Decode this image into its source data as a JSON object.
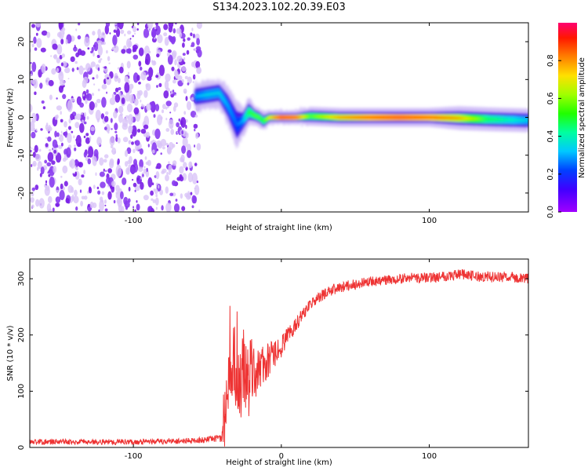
{
  "title": "S134.2023.102.20.39.E03",
  "colors": {
    "snr_line": "#ee3333",
    "spec_background_dot": "#7a1fe6",
    "spec_background_dot_light": "#d9c4f7"
  },
  "colorbar": {
    "label": "Normalized spectral amplitude",
    "range": [
      0.0,
      1.0
    ],
    "ticks": [
      0.0,
      0.2,
      0.4,
      0.6,
      0.8
    ],
    "tick_labels": [
      "0.0",
      "0.2",
      "0.4",
      "0.6",
      "0.8"
    ],
    "colormap": "gist_rainbow_r (magenta-purple-blue-cyan-green-yellow-orange-red)"
  },
  "chart_data": [
    {
      "type": "heatmap",
      "name": "spectrogram",
      "xlabel": "Height of straight line (km)",
      "ylabel": "Frequency (Hz)",
      "xlim": [
        -170,
        167
      ],
      "ylim": [
        -25,
        25
      ],
      "xticks": [
        -100,
        0,
        100
      ],
      "xtick_labels": [
        "-100",
        "",
        "100"
      ],
      "yticks": [
        -20,
        -10,
        0,
        10,
        20
      ],
      "ytick_labels": [
        "-20",
        "-10",
        "0",
        "10",
        "20"
      ],
      "noise_region_x": [
        -170,
        -58
      ],
      "carrier": {
        "x": [
          -58,
          -50,
          -42,
          -36,
          -30,
          -26,
          -22,
          -18,
          -15,
          -12,
          -8,
          0,
          10,
          20,
          40,
          60,
          80,
          100,
          120,
          140,
          167
        ],
        "freq": [
          5.5,
          6,
          6.5,
          3,
          -2,
          -1,
          1.5,
          0.5,
          0,
          -1,
          0,
          0,
          0,
          0.3,
          0,
          0,
          0,
          0,
          -0.2,
          -0.5,
          -0.8
        ],
        "amplitude": [
          0.3,
          0.35,
          0.35,
          0.3,
          0.25,
          0.3,
          0.5,
          0.55,
          0.55,
          0.5,
          0.7,
          0.95,
          0.9,
          0.55,
          0.8,
          0.9,
          0.95,
          0.9,
          0.8,
          0.5,
          0.35
        ],
        "width_hz": [
          3,
          3,
          3,
          4,
          5,
          3,
          3,
          2,
          2,
          2,
          1.5,
          1.5,
          1.5,
          2,
          2,
          2,
          2,
          2,
          2.5,
          2.5,
          2.5
        ]
      }
    },
    {
      "type": "line",
      "name": "snr",
      "xlabel": "Height of straight line (km)",
      "ylabel": "SNR (10 * v/v)",
      "xlim": [
        -170,
        167
      ],
      "ylim": [
        0,
        335
      ],
      "xticks": [
        -100,
        0,
        100
      ],
      "xtick_labels": [
        "-100",
        "0",
        "100"
      ],
      "yticks": [
        0,
        100,
        200,
        300
      ],
      "ytick_labels": [
        "0",
        "100",
        "200",
        "300"
      ],
      "x": [
        -170,
        -150,
        -120,
        -90,
        -60,
        -45,
        -40,
        -38,
        -35,
        -32,
        -30,
        -28,
        -25,
        -22,
        -20,
        -15,
        -10,
        -5,
        0,
        5,
        10,
        15,
        20,
        25,
        30,
        40,
        50,
        60,
        70,
        80,
        90,
        100,
        110,
        120,
        130,
        140,
        150,
        160,
        167
      ],
      "y": [
        10,
        10,
        10,
        10,
        12,
        15,
        20,
        60,
        100,
        130,
        80,
        120,
        140,
        120,
        135,
        140,
        150,
        165,
        180,
        200,
        220,
        240,
        255,
        265,
        275,
        285,
        290,
        295,
        297,
        300,
        302,
        302,
        305,
        308,
        305,
        303,
        303,
        302,
        300
      ],
      "noise": [
        5,
        5,
        5,
        5,
        5,
        6,
        10,
        60,
        80,
        100,
        80,
        90,
        80,
        70,
        60,
        40,
        35,
        25,
        20,
        15,
        15,
        12,
        10,
        10,
        10,
        10,
        9,
        9,
        9,
        9,
        9,
        9,
        10,
        10,
        10,
        10,
        9,
        9,
        9
      ]
    }
  ]
}
